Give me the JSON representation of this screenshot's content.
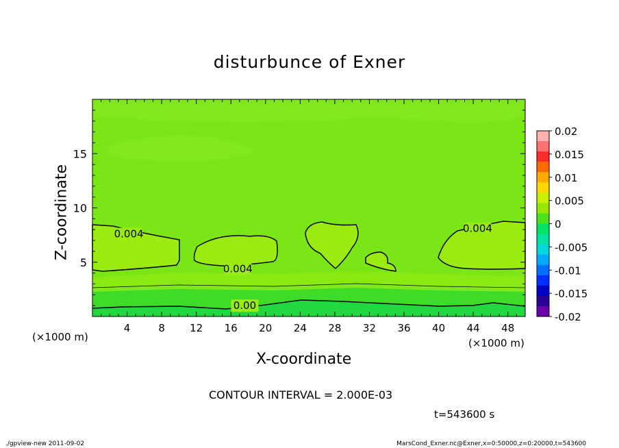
{
  "chart_data": {
    "type": "heatmap",
    "title": "disturbunce of Exner",
    "xlabel": "X-coordinate",
    "ylabel": "Z-coordinate",
    "x_unit": "(×1000 m)",
    "y_unit": "(×1000 m)",
    "xlim": [
      0,
      50
    ],
    "ylim": [
      0,
      20
    ],
    "x_ticks": [
      4,
      8,
      12,
      16,
      20,
      24,
      28,
      32,
      36,
      40,
      44,
      48
    ],
    "y_ticks": [
      5,
      10,
      15
    ],
    "contour_labels": [
      {
        "text": "0.004",
        "x": 4.2,
        "z": 7.6
      },
      {
        "text": "0.004",
        "x": 16.8,
        "z": 4.4
      },
      {
        "text": "0.004",
        "x": 44.5,
        "z": 8.1
      },
      {
        "text": "0.00",
        "x": 17.6,
        "z": 1.0
      }
    ],
    "colorbar": {
      "ticks": [
        "0.02",
        "0.015",
        "0.01",
        "0.005",
        "0",
        "-0.005",
        "-0.01",
        "-0.015",
        "-0.02"
      ],
      "colors": [
        "#ffb0b0",
        "#ff7070",
        "#ff2a2a",
        "#ff6a00",
        "#ffaa00",
        "#ffd800",
        "#c8f000",
        "#96e800",
        "#4ce21a",
        "#00e664",
        "#00e2a0",
        "#00d8dc",
        "#00aaff",
        "#0070ff",
        "#0030ff",
        "#0000c8",
        "#2a0096",
        "#6a00aa"
      ]
    },
    "field_colors": {
      "main": "#7ae615",
      "pale": "#80e81c",
      "high": "#9aec10",
      "zero": "#3edc28",
      "neg": "#22d840"
    },
    "contour_interval_text": "CONTOUR INTERVAL = 2.000E-03",
    "time_text": "t=543600  s"
  },
  "footer": {
    "left": "./gpview-new   2011-09-02",
    "right": "MarsCond_Exner.nc@Exner,x=0:50000,z=0:20000,t=543600"
  }
}
